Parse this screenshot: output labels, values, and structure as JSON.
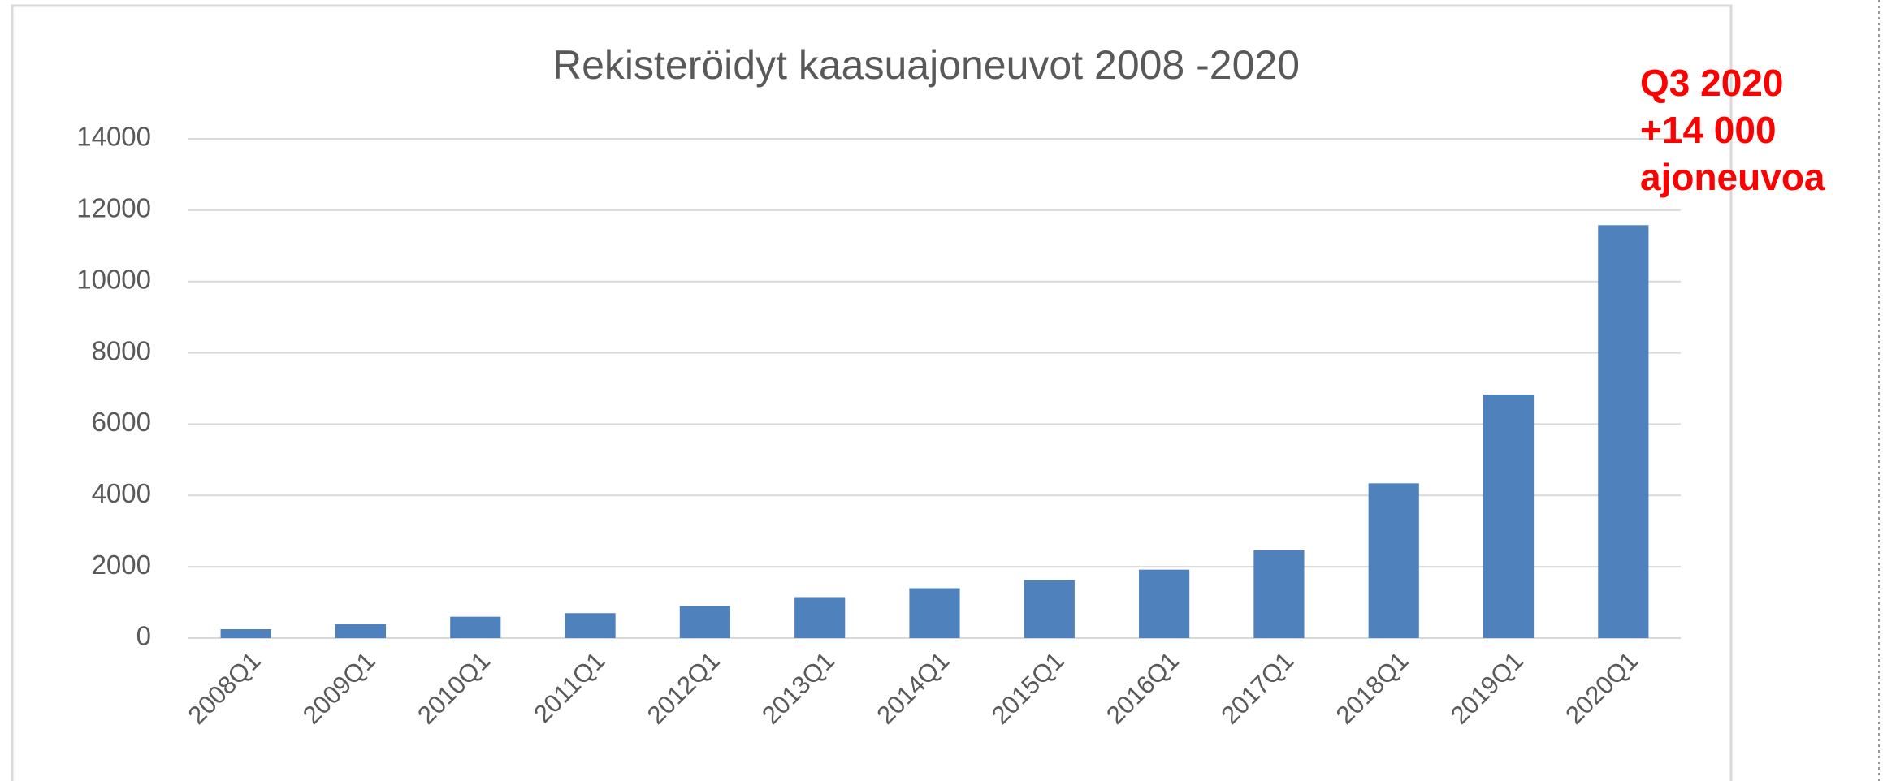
{
  "chart_data": {
    "type": "bar",
    "title": "Rekisteröidyt kaasuajoneuvot 2008 -2020",
    "categories": [
      "2008Q1",
      "2009Q1",
      "2010Q1",
      "2011Q1",
      "2012Q1",
      "2013Q1",
      "2014Q1",
      "2015Q1",
      "2016Q1",
      "2017Q1",
      "2018Q1",
      "2019Q1",
      "2020Q1"
    ],
    "values": [
      250,
      400,
      600,
      700,
      900,
      1150,
      1400,
      1620,
      1920,
      2460,
      4340,
      6830,
      11580
    ],
    "color": "#4f81bd",
    "ylim": [
      0,
      14000
    ],
    "yticks": [
      0,
      2000,
      4000,
      6000,
      8000,
      10000,
      12000,
      14000
    ],
    "grid": true,
    "annotation": [
      "Q3 2020",
      "+14 000",
      "ajoneuvoa"
    ],
    "annotation_color": "#ff0000"
  }
}
